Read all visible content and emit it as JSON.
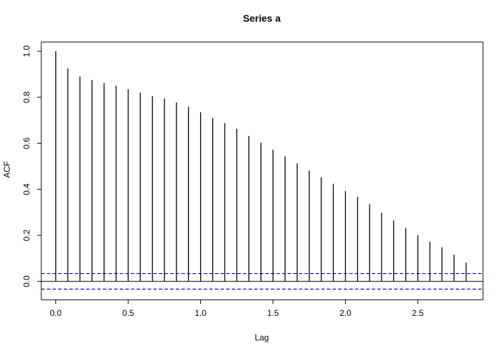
{
  "chart_data": {
    "type": "bar",
    "title": "Series  a",
    "xlabel": "Lag",
    "ylabel": "ACF",
    "xlim": [
      -0.1,
      2.95
    ],
    "ylim": [
      -0.08,
      1.04
    ],
    "x_ticks": [
      "0.0",
      "0.5",
      "1.0",
      "1.5",
      "2.0",
      "2.5"
    ],
    "x_tick_values": [
      0,
      0.5,
      1.0,
      1.5,
      2.0,
      2.5
    ],
    "y_ticks": [
      "0.0",
      "0.2",
      "0.4",
      "0.6",
      "0.8",
      "1.0"
    ],
    "y_tick_values": [
      0,
      0.2,
      0.4,
      0.6,
      0.8,
      1.0
    ],
    "grid": false,
    "lags": [
      0.0,
      0.0833,
      0.1667,
      0.25,
      0.3333,
      0.4167,
      0.5,
      0.5833,
      0.6667,
      0.75,
      0.8333,
      0.9167,
      1.0,
      1.0833,
      1.1667,
      1.25,
      1.3333,
      1.4167,
      1.5,
      1.5833,
      1.6667,
      1.75,
      1.8333,
      1.9167,
      2.0,
      2.0833,
      2.1667,
      2.25,
      2.3333,
      2.4167,
      2.5,
      2.5833,
      2.6667,
      2.75,
      2.8333
    ],
    "values": [
      1.0,
      0.925,
      0.89,
      0.875,
      0.862,
      0.85,
      0.835,
      0.82,
      0.805,
      0.795,
      0.778,
      0.758,
      0.735,
      0.71,
      0.688,
      0.663,
      0.632,
      0.603,
      0.572,
      0.543,
      0.513,
      0.481,
      0.452,
      0.424,
      0.393,
      0.367,
      0.336,
      0.298,
      0.265,
      0.232,
      0.2,
      0.172,
      0.148,
      0.116,
      0.082
    ],
    "confidence_bound": 0.034,
    "colors": {
      "bars": "#000000",
      "confidence": "#0000cc",
      "frame": "#000000"
    }
  }
}
